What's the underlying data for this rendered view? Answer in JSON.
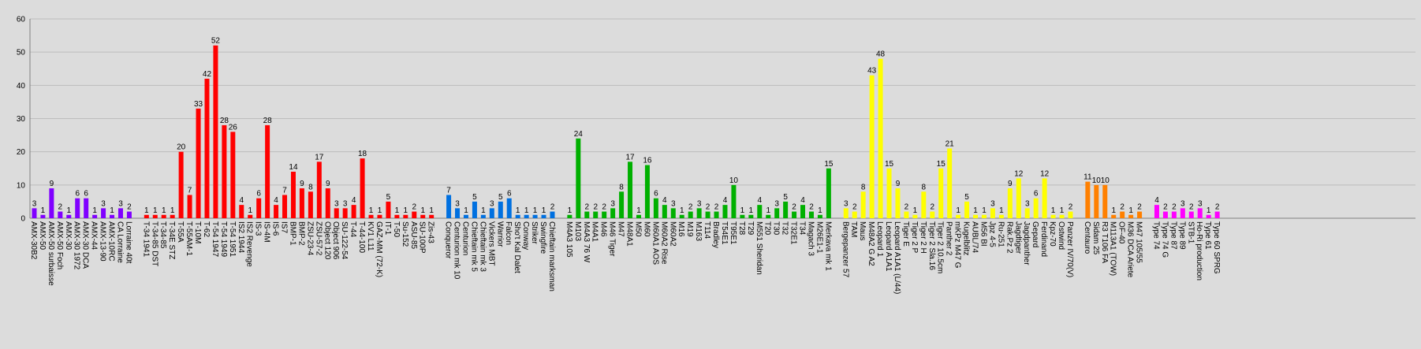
{
  "chart_data": {
    "type": "bar",
    "categories": [
      "AMX-30B2",
      "AMX-50",
      "AMX-50 surbaisse",
      "AMX-50 Foch",
      "AMX-30",
      "AMX-30 1972",
      "AMX-30 DCA",
      "AMX-44",
      "AMX-13-90",
      "AMX-10RC",
      "CA Lorraine",
      "Lorraine 40t",
      null,
      "T-34 1941",
      "T-34-85 DST",
      "T-34-85",
      "T-34E STZ",
      "T-55A",
      "T-55AM-1",
      "T-10M",
      "T-62",
      "T-54 1947",
      "T-54 1949",
      "T-54 1951",
      "IS2 1944",
      "IS2 Revenge",
      "IS-3",
      "IS-4M",
      "IS-6",
      "IS7",
      "BMP-1",
      "BMP-2",
      "ZSU-23-4",
      "ZSU-57-2",
      "Object 120",
      "Object 906",
      "SU-122-54",
      "T-44",
      "T-44-100",
      "KV1 L11",
      "GAZ-MM (72-K)",
      "IT-1",
      "T-50",
      "Su-152",
      "ASU-85",
      "SU-100P",
      "Zis-43",
      null,
      "Conqueror",
      "Centurion mk 10",
      "Centurion",
      "Chieftain mk 5",
      "Chieftain mk 3",
      "Vickers MBT",
      "Warrior",
      "Falcon",
      "Sho't Kal Dalet",
      "Conway",
      "Striker",
      "Swingfire",
      "Chieftain marksman",
      null,
      "M4A3 105",
      "M103",
      "M4A3 76 W",
      "M4A1",
      "M46",
      "M46 Tiger",
      "M47",
      "M48A1",
      "M50",
      "M60",
      "M60A1 AOS",
      "M60A2 Rise",
      "M60A2",
      "M16",
      "M19",
      "M163",
      "T114",
      "Bradley",
      "T54E1",
      "T95E1",
      "T28",
      "T29",
      "M551 Sheridan",
      "T20",
      "T30",
      "T32",
      "T32E1",
      "T34",
      "Magach 3",
      "M26E1-1",
      "Merkava mk 1",
      null,
      "Bergepanzer 57",
      "TAM",
      "Maus",
      "M48A2 G A2",
      "Leopard 1",
      "Leopard A1A1",
      "Leopard A1A1 (L/44)",
      "Tiger E",
      "Tiger 2 P",
      "Tiger 2 H",
      "Tiger 2 Sla.16",
      "Tiger 2 10.5cm",
      "Panther 2",
      "mKPz M47 G",
      "Kugelblitz",
      "AUBL/74",
      "M56 BI",
      "Jpz 4-5",
      "Ru-251",
      "Rak.Pz 2",
      "Jagdtiger",
      "Jagdpanther",
      "Gepard",
      "Ferdinand",
      "Kpz-70",
      "Ostwind",
      "Panzer IV/70(V)",
      null,
      "Centauro",
      "Sidam 25",
      "R3 T106 FA",
      "M113A1 (TOW)",
      "OF-40",
      "M36 DCA Ariete",
      "M47 105/55",
      null,
      "Type 74",
      "Type 74 G",
      "Type 87",
      "Type 89",
      "STB-1",
      "Ho-Ri production",
      "Type 61",
      "Type 60 SPRG"
    ],
    "values": [
      3,
      1,
      9,
      2,
      1,
      6,
      6,
      1,
      3,
      1,
      3,
      2,
      null,
      1,
      1,
      1,
      1,
      20,
      7,
      33,
      42,
      52,
      28,
      26,
      4,
      1,
      6,
      28,
      4,
      7,
      14,
      9,
      8,
      17,
      9,
      3,
      3,
      4,
      18,
      1,
      1,
      5,
      1,
      1,
      2,
      1,
      1,
      null,
      7,
      3,
      1,
      5,
      1,
      3,
      5,
      6,
      1,
      1,
      1,
      1,
      2,
      null,
      1,
      24,
      2,
      2,
      2,
      3,
      8,
      17,
      1,
      16,
      6,
      4,
      3,
      1,
      2,
      3,
      2,
      2,
      4,
      10,
      1,
      1,
      4,
      1,
      3,
      5,
      2,
      4,
      2,
      1,
      15,
      null,
      3,
      2,
      8,
      43,
      48,
      15,
      9,
      2,
      1,
      8,
      2,
      15,
      21,
      1,
      5,
      1,
      1,
      3,
      1,
      9,
      12,
      3,
      6,
      12,
      1,
      1,
      2,
      null,
      11,
      10,
      10,
      1,
      2,
      1,
      2,
      null,
      4,
      2,
      2,
      3,
      2,
      3,
      1,
      2
    ],
    "colors": [
      "#8000ff",
      "#8000ff",
      "#8000ff",
      "#8000ff",
      "#8000ff",
      "#8000ff",
      "#8000ff",
      "#8000ff",
      "#8000ff",
      "#8000ff",
      "#8000ff",
      "#8000ff",
      null,
      "#ff0000",
      "#ff0000",
      "#ff0000",
      "#ff0000",
      "#ff0000",
      "#ff0000",
      "#ff0000",
      "#ff0000",
      "#ff0000",
      "#ff0000",
      "#ff0000",
      "#ff0000",
      "#ff0000",
      "#ff0000",
      "#ff0000",
      "#ff0000",
      "#ff0000",
      "#ff0000",
      "#ff0000",
      "#ff0000",
      "#ff0000",
      "#ff0000",
      "#ff0000",
      "#ff0000",
      "#ff0000",
      "#ff0000",
      "#ff0000",
      "#ff0000",
      "#ff0000",
      "#ff0000",
      "#ff0000",
      "#ff0000",
      "#ff0000",
      "#ff0000",
      null,
      "#0070e0",
      "#0070e0",
      "#0070e0",
      "#0070e0",
      "#0070e0",
      "#0070e0",
      "#0070e0",
      "#0070e0",
      "#0070e0",
      "#0070e0",
      "#0070e0",
      "#0070e0",
      "#0070e0",
      null,
      "#00b000",
      "#00b000",
      "#00b000",
      "#00b000",
      "#00b000",
      "#00b000",
      "#00b000",
      "#00b000",
      "#00b000",
      "#00b000",
      "#00b000",
      "#00b000",
      "#00b000",
      "#00b000",
      "#00b000",
      "#00b000",
      "#00b000",
      "#00b000",
      "#00b000",
      "#00b000",
      "#00b000",
      "#00b000",
      "#00b000",
      "#00b000",
      "#00b000",
      "#00b000",
      "#00b000",
      "#00b000",
      "#00b000",
      "#00b000",
      "#00b000",
      null,
      "#ffff00",
      "#ffff00",
      "#ffff00",
      "#ffff00",
      "#ffff00",
      "#ffff00",
      "#ffff00",
      "#ffff00",
      "#ffff00",
      "#ffff00",
      "#ffff00",
      "#ffff00",
      "#ffff00",
      "#ffff00",
      "#ffff00",
      "#ffff00",
      "#ffff00",
      "#ffff00",
      "#ffff00",
      "#ffff00",
      "#ffff00",
      "#ffff00",
      "#ffff00",
      "#ffff00",
      "#ffff00",
      "#ffff00",
      "#ffff00",
      null,
      "#ff8000",
      "#ff8000",
      "#ff8000",
      "#ff8000",
      "#ff8000",
      "#ff8000",
      "#ff8000",
      null,
      "#ff00ff",
      "#ff00ff",
      "#ff00ff",
      "#ff00ff",
      "#ff00ff",
      "#ff00ff",
      "#ff00ff",
      "#ff00ff"
    ],
    "ylim": [
      0,
      60
    ],
    "yticks": [
      0,
      10,
      20,
      30,
      40,
      50,
      60
    ],
    "grid": true
  }
}
